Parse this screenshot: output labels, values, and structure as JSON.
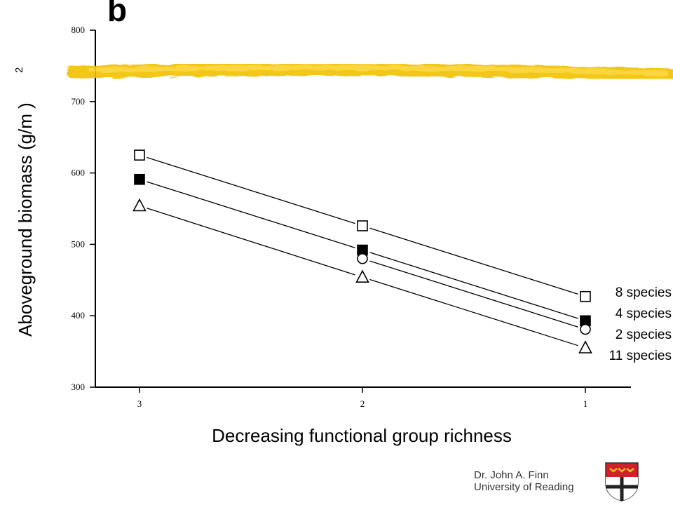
{
  "panel_label": "b",
  "credit": {
    "author": "Dr. John A. Finn",
    "affiliation": "University of Reading"
  },
  "colors": {
    "highlight_stroke": "#f2c200",
    "axis": "#000000",
    "crest_red": "#d0202a",
    "crest_gold": "#f0c020"
  },
  "icons": {
    "crest": "university-crest-icon"
  },
  "chart_data": {
    "type": "line",
    "xlabel": "Decreasing functional group richness",
    "ylabel": "Aboveground biomass (g/m )",
    "ylabel_superscript": "2",
    "categories": [
      "3",
      "2",
      "1"
    ],
    "yticks": [
      "300",
      "400",
      "500",
      "600",
      "700",
      "800"
    ],
    "ylim": [
      300,
      800
    ],
    "grid": false,
    "legend": "right",
    "series": [
      {
        "name": "8 species",
        "marker": "open-square",
        "values": [
          625,
          526,
          427
        ]
      },
      {
        "name": "4 species",
        "marker": "filled-square",
        "values": [
          591,
          492,
          393
        ]
      },
      {
        "name": "2 species",
        "marker": "open-circle",
        "values": [
          null,
          480,
          381
        ]
      },
      {
        "name": "11 species",
        "marker": "open-triangle",
        "values": [
          554,
          454,
          355
        ]
      }
    ],
    "annotations": [
      "yellow highlighter stroke across top at about 740"
    ]
  }
}
